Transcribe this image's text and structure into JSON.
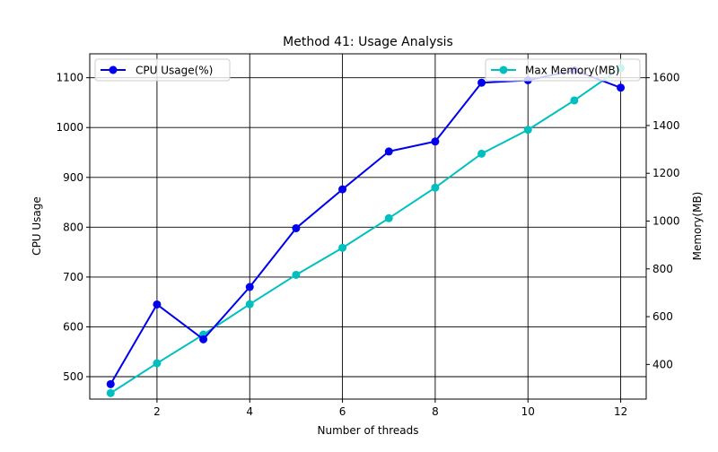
{
  "chart_data": {
    "type": "line",
    "title": "Method 41: Usage Analysis",
    "xlabel": "Number of threads",
    "ylabel": "CPU Usage",
    "y2label": "Memory(MB)",
    "x": [
      1,
      2,
      3,
      4,
      5,
      6,
      7,
      8,
      9,
      10,
      11,
      12
    ],
    "xlim": [
      0.55,
      12.55
    ],
    "ylim": [
      455,
      1148
    ],
    "y2lim": [
      255,
      1700
    ],
    "xticks": [
      2,
      4,
      6,
      8,
      10,
      12
    ],
    "yticks": [
      500,
      600,
      700,
      800,
      900,
      1000,
      1100
    ],
    "y2ticks": [
      400,
      600,
      800,
      1000,
      1200,
      1400,
      1600
    ],
    "grid": true,
    "series": [
      {
        "name": "CPU Usage(%)",
        "axis": "left",
        "color": "#0000ee",
        "values": [
          485,
          645,
          575,
          680,
          798,
          876,
          952,
          972,
          1090,
          1095,
          1115,
          1080
        ]
      },
      {
        "name": "Max Memory(MB)",
        "axis": "right",
        "color": "#00bfbf",
        "values": [
          280,
          405,
          525,
          652,
          775,
          888,
          1012,
          1140,
          1282,
          1382,
          1505,
          1640
        ]
      }
    ],
    "legends": [
      {
        "placement": "upper-left",
        "series": 0
      },
      {
        "placement": "upper-right",
        "series": 1
      }
    ]
  }
}
